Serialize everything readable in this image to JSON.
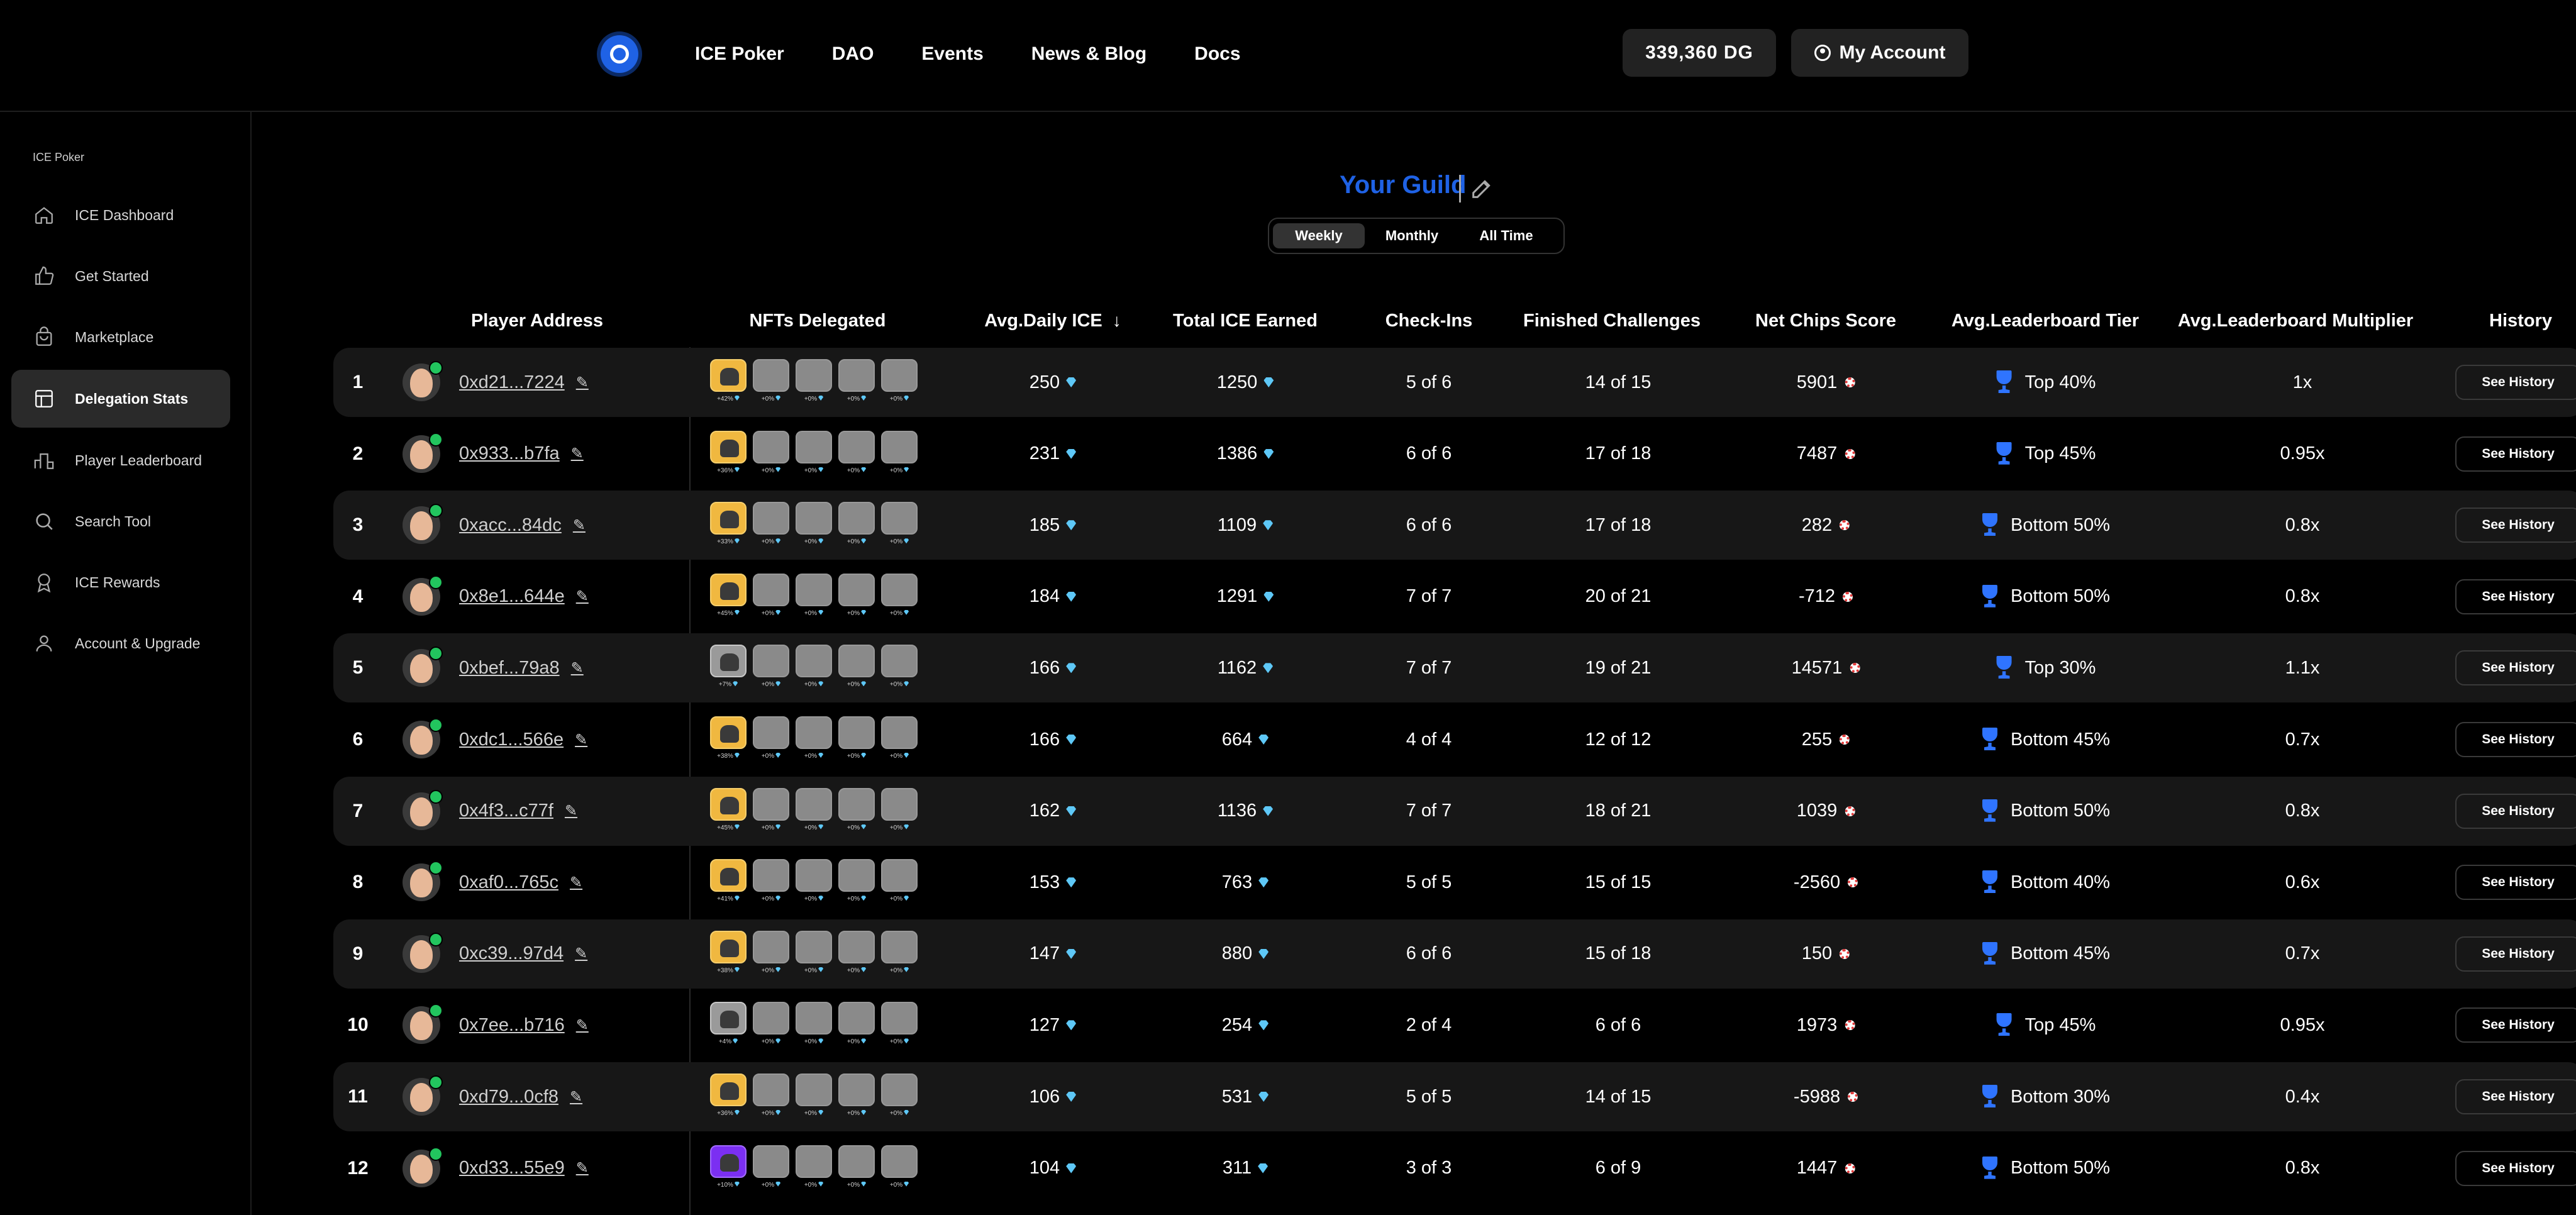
{
  "nav": {
    "links": [
      "ICE Poker",
      "DAO",
      "Events",
      "News & Blog",
      "Docs"
    ],
    "balance": "339,360 DG",
    "account_label": "My Account"
  },
  "sidebar": {
    "section": "ICE Poker",
    "items": [
      {
        "label": "ICE Dashboard",
        "icon": "home-icon",
        "active": false
      },
      {
        "label": "Get Started",
        "icon": "thumbs-up-icon",
        "active": false
      },
      {
        "label": "Marketplace",
        "icon": "shopping-bag-icon",
        "active": false
      },
      {
        "label": "Delegation Stats",
        "icon": "layout-icon",
        "active": true
      },
      {
        "label": "Player Leaderboard",
        "icon": "podium-icon",
        "active": false
      },
      {
        "label": "Search Tool",
        "icon": "search-icon",
        "active": false
      },
      {
        "label": "ICE Rewards",
        "icon": "medal-icon",
        "active": false
      },
      {
        "label": "Account & Upgrade",
        "icon": "user-icon",
        "active": false
      }
    ]
  },
  "guild": {
    "title": "Your Guild",
    "ranges": [
      "Weekly",
      "Monthly",
      "All Time"
    ],
    "active_range": "Weekly"
  },
  "table": {
    "headers": {
      "player": "Player Address",
      "nfts": "NFTs Delegated",
      "avg_ice": "Avg.Daily ICE",
      "total_ice": "Total ICE Earned",
      "checkins": "Check-Ins",
      "challenges": "Finished Challenges",
      "chips": "Net Chips Score",
      "tier": "Avg.Leaderboard Tier",
      "multiplier": "Avg.Leaderboard Multiplier",
      "history": "History"
    },
    "history_label": "See History",
    "empty_nft_pct": "+0%",
    "rows": [
      {
        "rank": "1",
        "address": "0xd21...7224",
        "nft_pct": "+42%",
        "nft_color": "gold",
        "avg_ice": "250",
        "total_ice": "1250",
        "checkins": "5 of 6",
        "challenges": "14 of 15",
        "chips": "5901",
        "tier": "Top 40%",
        "multiplier": "1x"
      },
      {
        "rank": "2",
        "address": "0x933...b7fa",
        "nft_pct": "+36%",
        "nft_color": "gold",
        "avg_ice": "231",
        "total_ice": "1386",
        "checkins": "6 of 6",
        "challenges": "17 of 18",
        "chips": "7487",
        "tier": "Top 45%",
        "multiplier": "0.95x"
      },
      {
        "rank": "3",
        "address": "0xacc...84dc",
        "nft_pct": "+33%",
        "nft_color": "gold",
        "avg_ice": "185",
        "total_ice": "1109",
        "checkins": "6 of 6",
        "challenges": "17 of 18",
        "chips": "282",
        "tier": "Bottom 50%",
        "multiplier": "0.8x"
      },
      {
        "rank": "4",
        "address": "0x8e1...644e",
        "nft_pct": "+45%",
        "nft_color": "gold",
        "avg_ice": "184",
        "total_ice": "1291",
        "checkins": "7 of 7",
        "challenges": "20 of 21",
        "chips": "-712",
        "tier": "Bottom 50%",
        "multiplier": "0.8x"
      },
      {
        "rank": "5",
        "address": "0xbef...79a8",
        "nft_pct": "+7%",
        "nft_color": "silver",
        "avg_ice": "166",
        "total_ice": "1162",
        "checkins": "7 of 7",
        "challenges": "19 of 21",
        "chips": "14571",
        "tier": "Top 30%",
        "multiplier": "1.1x"
      },
      {
        "rank": "6",
        "address": "0xdc1...566e",
        "nft_pct": "+38%",
        "nft_color": "gold",
        "avg_ice": "166",
        "total_ice": "664",
        "checkins": "4 of 4",
        "challenges": "12 of 12",
        "chips": "255",
        "tier": "Bottom 45%",
        "multiplier": "0.7x"
      },
      {
        "rank": "7",
        "address": "0x4f3...c77f",
        "nft_pct": "+45%",
        "nft_color": "gold",
        "avg_ice": "162",
        "total_ice": "1136",
        "checkins": "7 of 7",
        "challenges": "18 of 21",
        "chips": "1039",
        "tier": "Bottom 50%",
        "multiplier": "0.8x"
      },
      {
        "rank": "8",
        "address": "0xaf0...765c",
        "nft_pct": "+41%",
        "nft_color": "gold",
        "avg_ice": "153",
        "total_ice": "763",
        "checkins": "5 of 5",
        "challenges": "15 of 15",
        "chips": "-2560",
        "tier": "Bottom 40%",
        "multiplier": "0.6x"
      },
      {
        "rank": "9",
        "address": "0xc39...97d4",
        "nft_pct": "+38%",
        "nft_color": "gold",
        "avg_ice": "147",
        "total_ice": "880",
        "checkins": "6 of 6",
        "challenges": "15 of 18",
        "chips": "150",
        "tier": "Bottom 45%",
        "multiplier": "0.7x"
      },
      {
        "rank": "10",
        "address": "0x7ee...b716",
        "nft_pct": "+4%",
        "nft_color": "silver",
        "avg_ice": "127",
        "total_ice": "254",
        "checkins": "2 of 4",
        "challenges": "6 of 6",
        "chips": "1973",
        "tier": "Top 45%",
        "multiplier": "0.95x"
      },
      {
        "rank": "11",
        "address": "0xd79...0cf8",
        "nft_pct": "+36%",
        "nft_color": "gold",
        "avg_ice": "106",
        "total_ice": "531",
        "checkins": "5 of 5",
        "challenges": "14 of 15",
        "chips": "-5988",
        "tier": "Bottom 30%",
        "multiplier": "0.4x"
      },
      {
        "rank": "12",
        "address": "0xd33...55e9",
        "nft_pct": "+10%",
        "nft_color": "purple",
        "avg_ice": "104",
        "total_ice": "311",
        "checkins": "3 of 3",
        "challenges": "6 of 9",
        "chips": "1447",
        "tier": "Bottom 50%",
        "multiplier": "0.8x"
      }
    ]
  },
  "colors": {
    "accent": "#1f62e5",
    "ice_gem": "#5ec8f7",
    "chip_red": "#e23c3c",
    "trophy_blue": "#2f74ff",
    "verified_green": "#22c55e"
  }
}
